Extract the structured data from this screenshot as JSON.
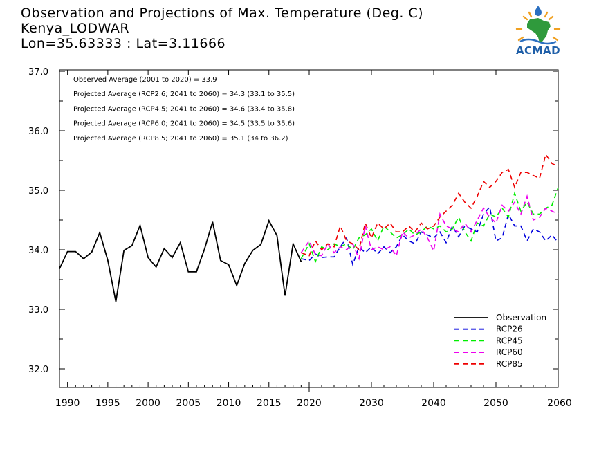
{
  "header": {
    "line1": "Observation and Projections of Max. Temperature (Deg. C)",
    "line2": "Kenya_LODWAR",
    "line3": "Lon=35.63333 : Lat=3.11666"
  },
  "logo": {
    "text": "ACMAD",
    "icon": "africa-map-logo"
  },
  "annotations": [
    "Observed Average (2001 to 2020) = 33.9",
    "Projected Average (RCP2.6; 2041 to 2060) = 34.3 (33.1 to 35.5)",
    "Projected Average (RCP4.5; 2041 to 2060) = 34.6 (33.4 to 35.8)",
    "Projected Average (RCP6.0; 2041 to 2060) = 34.5 (33.5 to 35.6)",
    "Projected Average (RCP8.5; 2041 to 2060) = 35.1 (34 to 36.2)"
  ],
  "chart_data": {
    "type": "line",
    "title": "Observation and Projections of Max. Temperature (Deg. C)",
    "xlabel": "",
    "ylabel": "",
    "xlim": [
      1990,
      2060
    ],
    "ylim": [
      31.7,
      37.0
    ],
    "x_ticks_left": [
      1990,
      1995,
      2000,
      2005,
      2010,
      2015,
      2020
    ],
    "x_ticks_right": [
      2020,
      2030,
      2040,
      2050,
      2060
    ],
    "y_ticks": [
      32.0,
      33.0,
      34.0,
      35.0,
      36.0,
      37.0
    ],
    "y_tick_labels": [
      "32.0",
      "33.0",
      "34.0",
      "35.0",
      "36.0",
      "37.0"
    ],
    "legend_position": "bottom-right",
    "series": [
      {
        "name": "Observation",
        "color": "#000000",
        "dash": "solid",
        "x": [
          1989,
          1990,
          1991,
          1992,
          1993,
          1994,
          1995,
          1996,
          1997,
          1998,
          1999,
          2000,
          2001,
          2002,
          2003,
          2004,
          2005,
          2006,
          2007,
          2008,
          2009,
          2010,
          2011,
          2012,
          2013,
          2014,
          2015,
          2016,
          2017,
          2018,
          2019
        ],
        "y": [
          33.68,
          33.97,
          33.97,
          33.85,
          33.96,
          34.29,
          33.82,
          33.13,
          33.99,
          34.07,
          34.41,
          33.87,
          33.71,
          34.02,
          33.87,
          34.12,
          33.63,
          33.63,
          34.01,
          34.47,
          33.82,
          33.75,
          33.4,
          33.77,
          33.99,
          34.09,
          34.49,
          34.24,
          33.23,
          34.1,
          33.8
        ]
      },
      {
        "name": "RCP26",
        "color": "#0000dd",
        "dash": "dashed",
        "x": [
          2019,
          2020,
          2021,
          2022,
          2023,
          2024,
          2025,
          2026,
          2027,
          2028,
          2029,
          2030,
          2031,
          2032,
          2033,
          2034,
          2035,
          2036,
          2037,
          2038,
          2039,
          2040,
          2041,
          2042,
          2043,
          2044,
          2045,
          2046,
          2047,
          2048,
          2049,
          2050,
          2051,
          2052,
          2053,
          2054,
          2055,
          2056,
          2057,
          2058,
          2059,
          2060
        ],
        "y": [
          33.85,
          33.82,
          33.93,
          33.87,
          33.88,
          33.88,
          34.05,
          34.2,
          33.75,
          34.05,
          33.95,
          34.05,
          33.93,
          34.05,
          33.95,
          34.05,
          34.25,
          34.15,
          34.1,
          34.3,
          34.25,
          34.2,
          34.3,
          34.12,
          34.4,
          34.22,
          34.4,
          34.35,
          34.3,
          34.6,
          34.72,
          34.15,
          34.2,
          34.6,
          34.4,
          34.4,
          34.15,
          34.35,
          34.3,
          34.15,
          34.25,
          34.12
        ]
      },
      {
        "name": "RCP45",
        "color": "#00ee00",
        "dash": "dashed",
        "x": [
          2019,
          2020,
          2021,
          2022,
          2023,
          2024,
          2025,
          2026,
          2027,
          2028,
          2029,
          2030,
          2031,
          2032,
          2033,
          2034,
          2035,
          2036,
          2037,
          2038,
          2039,
          2040,
          2041,
          2042,
          2043,
          2044,
          2045,
          2046,
          2047,
          2048,
          2049,
          2050,
          2051,
          2052,
          2053,
          2054,
          2055,
          2056,
          2057,
          2058,
          2059,
          2060
        ],
        "y": [
          33.85,
          34.1,
          33.8,
          34.05,
          34.0,
          34.1,
          34.05,
          34.1,
          34.0,
          34.2,
          34.25,
          34.35,
          34.15,
          34.4,
          34.3,
          34.2,
          34.25,
          34.35,
          34.25,
          34.3,
          34.4,
          34.35,
          34.4,
          34.3,
          34.35,
          34.55,
          34.3,
          34.15,
          34.45,
          34.4,
          34.6,
          34.55,
          34.7,
          34.55,
          34.95,
          34.65,
          34.8,
          34.6,
          34.6,
          34.7,
          34.75,
          35.05
        ]
      },
      {
        "name": "RCP60",
        "color": "#ee00ee",
        "dash": "dashed",
        "x": [
          2019,
          2020,
          2021,
          2022,
          2023,
          2024,
          2025,
          2026,
          2027,
          2028,
          2029,
          2030,
          2031,
          2032,
          2033,
          2034,
          2035,
          2036,
          2037,
          2038,
          2039,
          2040,
          2041,
          2042,
          2043,
          2044,
          2045,
          2046,
          2047,
          2048,
          2049,
          2050,
          2051,
          2052,
          2053,
          2054,
          2055,
          2056,
          2057,
          2058,
          2059,
          2060
        ],
        "y": [
          33.95,
          34.15,
          33.92,
          33.9,
          34.1,
          33.95,
          34.05,
          34.0,
          34.1,
          33.85,
          34.4,
          34.0,
          34.05,
          34.0,
          34.05,
          33.9,
          34.3,
          34.2,
          34.25,
          34.35,
          34.2,
          33.98,
          34.6,
          34.4,
          34.35,
          34.3,
          34.45,
          34.3,
          34.5,
          34.7,
          34.55,
          34.45,
          34.75,
          34.65,
          34.8,
          34.6,
          34.9,
          34.5,
          34.55,
          34.7,
          34.65,
          34.6
        ]
      },
      {
        "name": "RCP85",
        "color": "#ee0000",
        "dash": "dashed",
        "x": [
          2019,
          2020,
          2021,
          2022,
          2023,
          2024,
          2025,
          2026,
          2027,
          2028,
          2029,
          2030,
          2031,
          2032,
          2033,
          2034,
          2035,
          2036,
          2037,
          2038,
          2039,
          2040,
          2041,
          2042,
          2043,
          2044,
          2045,
          2046,
          2047,
          2048,
          2049,
          2050,
          2051,
          2052,
          2053,
          2054,
          2055,
          2056,
          2057,
          2058,
          2059,
          2060
        ],
        "y": [
          33.95,
          33.9,
          34.15,
          34.0,
          34.1,
          34.05,
          34.4,
          34.15,
          34.1,
          34.0,
          34.45,
          34.2,
          34.45,
          34.35,
          34.45,
          34.3,
          34.3,
          34.4,
          34.3,
          34.45,
          34.35,
          34.4,
          34.55,
          34.65,
          34.75,
          34.95,
          34.8,
          34.7,
          34.9,
          35.15,
          35.05,
          35.15,
          35.3,
          35.35,
          35.05,
          35.3,
          35.3,
          35.25,
          35.2,
          35.6,
          35.45,
          35.4
        ]
      }
    ]
  }
}
